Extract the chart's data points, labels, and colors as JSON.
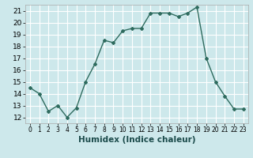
{
  "x": [
    0,
    1,
    2,
    3,
    4,
    5,
    6,
    7,
    8,
    9,
    10,
    11,
    12,
    13,
    14,
    15,
    16,
    17,
    18,
    19,
    20,
    21,
    22,
    23
  ],
  "y": [
    14.5,
    14.0,
    12.5,
    13.0,
    12.0,
    12.8,
    15.0,
    16.5,
    18.5,
    18.3,
    19.3,
    19.5,
    19.5,
    20.8,
    20.8,
    20.8,
    20.5,
    20.8,
    21.3,
    17.0,
    15.0,
    13.8,
    12.7,
    12.7
  ],
  "line_color": "#2e6b5e",
  "marker": "D",
  "marker_size": 2.0,
  "bg_color": "#cde8eb",
  "grid_color": "#ffffff",
  "xlabel": "Humidex (Indice chaleur)",
  "xlabel_fontsize": 7.5,
  "xlim": [
    -0.5,
    23.5
  ],
  "ylim": [
    11.5,
    21.5
  ],
  "yticks": [
    12,
    13,
    14,
    15,
    16,
    17,
    18,
    19,
    20,
    21
  ],
  "xticks": [
    0,
    1,
    2,
    3,
    4,
    5,
    6,
    7,
    8,
    9,
    10,
    11,
    12,
    13,
    14,
    15,
    16,
    17,
    18,
    19,
    20,
    21,
    22,
    23
  ],
  "ytick_fontsize": 6.5,
  "xtick_fontsize": 5.5,
  "line_width": 1.0
}
